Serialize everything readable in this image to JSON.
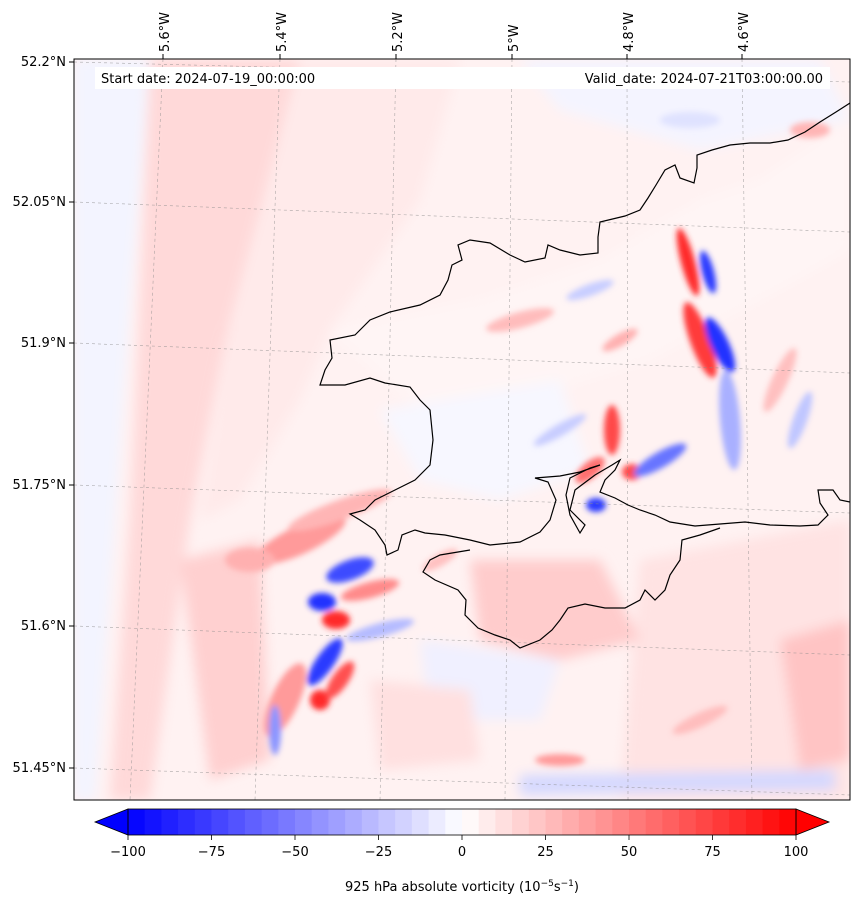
{
  "header": {
    "start_date": "Start date: 2024-07-19_00:00:00",
    "valid_date": "Valid_date: 2024-07-21T03:00:00.00"
  },
  "map": {
    "longitude_labels": [
      "5.6°W",
      "5.4°W",
      "5.2°W",
      "5°W",
      "4.8°W",
      "4.6°W"
    ],
    "latitude_labels": [
      "52.2°N",
      "52.05°N",
      "51.9°N",
      "51.75°N",
      "51.6°N",
      "51.45°N"
    ],
    "variable": "925 hPa absolute vorticity"
  },
  "colorbar": {
    "label": "925 hPa absolute vorticity (10",
    "label_sup1": "−5",
    "label_mid": "s",
    "label_sup2": "−1",
    "label_end": ")",
    "ticks": [
      "−100",
      "−75",
      "−50",
      "−25",
      "0",
      "25",
      "50",
      "75",
      "100"
    ],
    "tick_values": [
      -100,
      -75,
      -50,
      -25,
      0,
      25,
      50,
      75,
      100
    ],
    "min": -100,
    "max": 100,
    "step": 5,
    "color_low": "#0000ff",
    "color_mid": "#ffffff",
    "color_high": "#ff0000"
  }
}
